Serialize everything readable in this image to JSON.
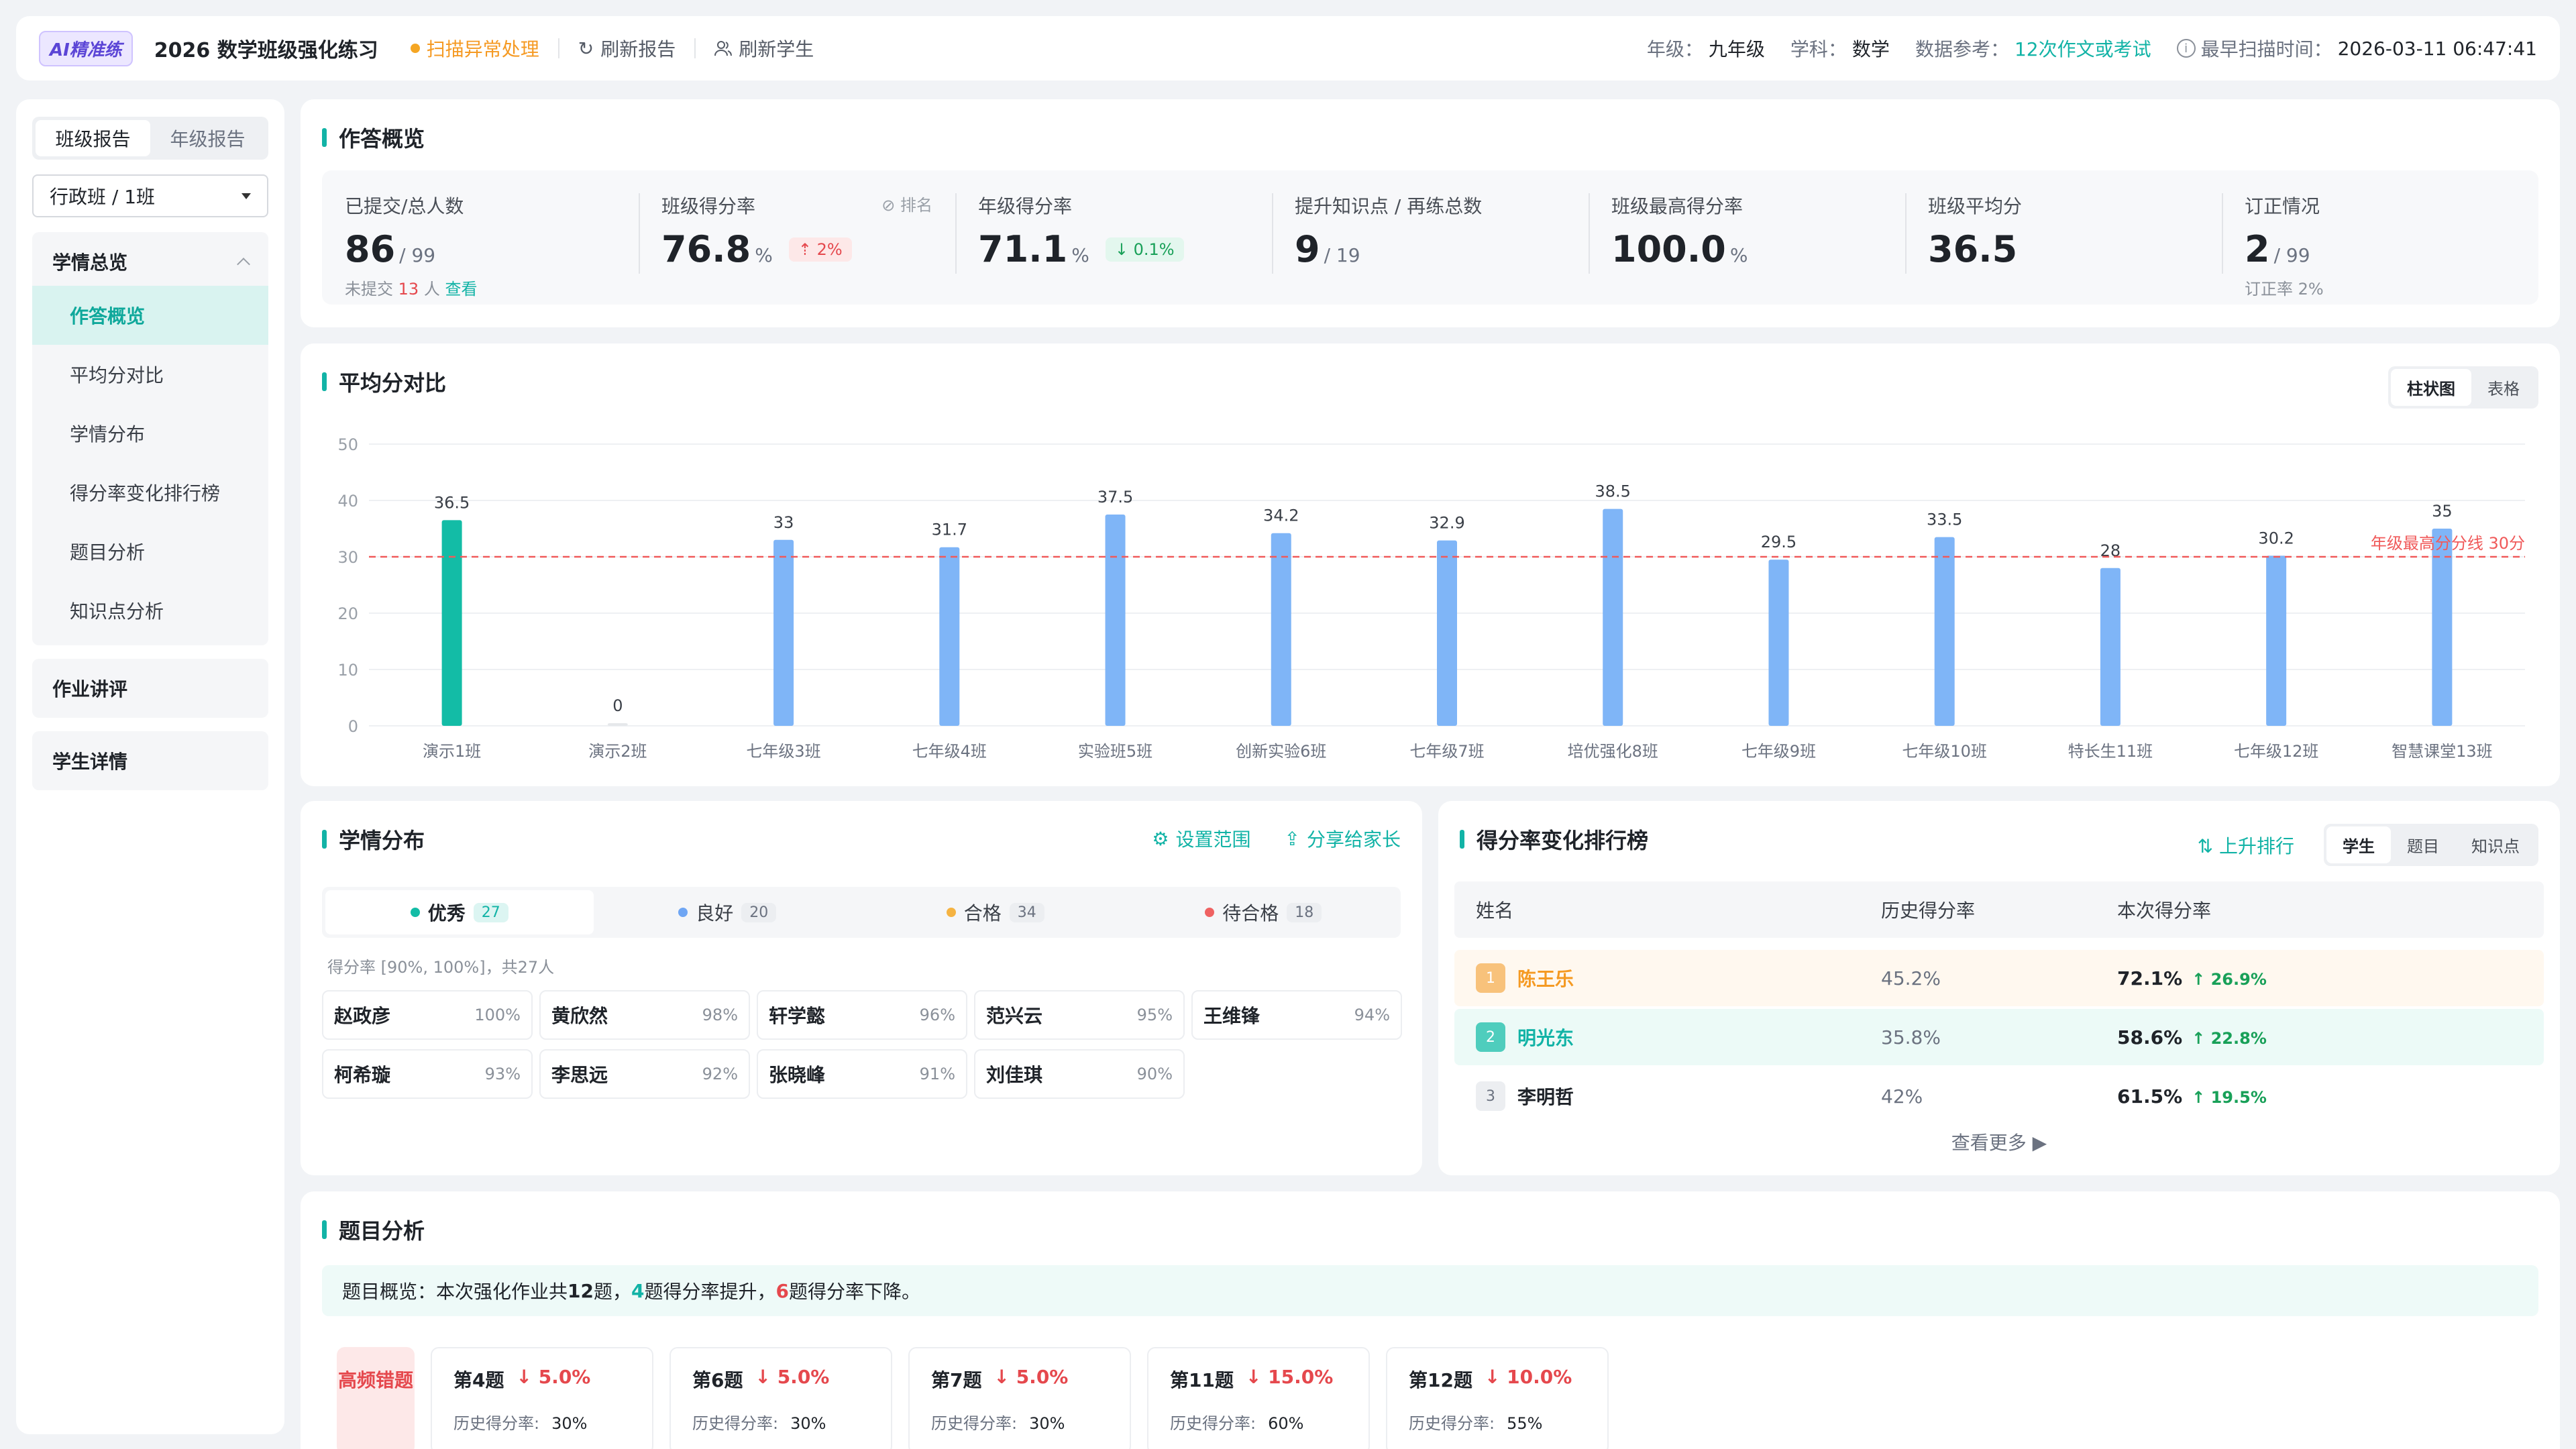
{
  "topbar": {
    "badge": "AI精准练",
    "title": "2026 数学班级强化练习",
    "warn": "扫描异常处理",
    "refresh_report": "刷新报告",
    "refresh_students": "刷新学生",
    "grade_label": "年级：",
    "grade": "九年级",
    "subject_label": "学科：",
    "subject": "数学",
    "ref_label": "数据参考：",
    "ref": "12次作文或考试",
    "scan_label": "最早扫描时间：",
    "scan_time": "2026-03-11 06:47:41"
  },
  "sidebar": {
    "tab_class": "班级报告",
    "tab_grade": "年级报告",
    "class_select": "行政班 / 1班",
    "group_title": "学情总览",
    "items": [
      "作答概览",
      "平均分对比",
      "学情分布",
      "得分率变化排行榜",
      "题目分析",
      "知识点分析"
    ],
    "homework": "作业讲评",
    "student_detail": "学生详情"
  },
  "overview": {
    "title": "作答概览",
    "rank_hint": "排名",
    "stats": [
      {
        "label": "已提交/总人数",
        "value": "86",
        "unit": "/ 99",
        "sub_prefix": "未提交",
        "sub_red": "13",
        "sub_mid": "人",
        "sub_link": "查看"
      },
      {
        "label": "班级得分率",
        "value": "76.8",
        "unit": "%",
        "chip": "2%"
      },
      {
        "label": "年级得分率",
        "value": "71.1",
        "unit": "%",
        "chip": "0.1%"
      },
      {
        "label": "提升知识点 / 再练总数",
        "value": "9",
        "unit": "/ 19"
      },
      {
        "label": "班级最高得分率",
        "value": "100.0",
        "unit": "%"
      },
      {
        "label": "班级平均分",
        "value": "36.5",
        "unit": ""
      },
      {
        "label": "订正情况",
        "value": "2",
        "unit": "/ 99",
        "sub": "订正率 2%"
      }
    ]
  },
  "avg": {
    "title": "平均分对比",
    "toggle_bar": "柱状图",
    "toggle_table": "表格"
  },
  "chart_data": {
    "type": "bar",
    "categories": [
      "演示1班",
      "演示2班",
      "七年级3班",
      "七年级4班",
      "实验班5班",
      "创新实验6班",
      "七年级7班",
      "培优强化8班",
      "七年级9班",
      "七年级10班",
      "特长生11班",
      "七年级12班",
      "智慧课堂13班"
    ],
    "values": [
      36.5,
      0,
      33,
      31.7,
      37.5,
      34.2,
      32.9,
      38.5,
      29.5,
      33.5,
      28,
      30.2,
      35
    ],
    "highlight_index": 0,
    "ylim": [
      0,
      50
    ],
    "yticks": [
      0,
      10,
      20,
      30,
      40,
      50
    ],
    "reference_line": {
      "value": 30,
      "label": "年级最高分分线 30分"
    },
    "colors": {
      "highlight": "#13bca6",
      "bar": "#7fb5f7",
      "ref": "#f05a5a"
    }
  },
  "dist": {
    "title": "学情分布",
    "set_range": "设置范围",
    "share": "分享给家长",
    "tabs": [
      {
        "label": "优秀",
        "count": "27",
        "color": "#13bca6"
      },
      {
        "label": "良好",
        "count": "20",
        "color": "#6fa6f4"
      },
      {
        "label": "合格",
        "count": "34",
        "color": "#f5b342"
      },
      {
        "label": "待合格",
        "count": "18",
        "color": "#ef6262"
      }
    ],
    "range_text": "得分率 [90%, 100%]，共27人",
    "students": [
      {
        "name": "赵政彦",
        "pct": "100%"
      },
      {
        "name": "黄欣然",
        "pct": "98%"
      },
      {
        "name": "轩学懿",
        "pct": "96%"
      },
      {
        "name": "范兴云",
        "pct": "95%"
      },
      {
        "name": "王维锋",
        "pct": "94%"
      },
      {
        "name": "柯希璇",
        "pct": "93%"
      },
      {
        "name": "李思远",
        "pct": "92%"
      },
      {
        "name": "张晓峰",
        "pct": "91%"
      },
      {
        "name": "刘佳琪",
        "pct": "90%"
      }
    ]
  },
  "rank": {
    "title": "得分率变化排行榜",
    "sort": "上升排行",
    "tabs": [
      "学生",
      "题目",
      "知识点"
    ],
    "col_name": "姓名",
    "col_hist": "历史得分率",
    "col_now": "本次得分率",
    "rows": [
      {
        "no": "1",
        "name": "陈王乐",
        "hist": "45.2%",
        "now": "72.1%",
        "inc": "26.9%"
      },
      {
        "no": "2",
        "name": "明光东",
        "hist": "35.8%",
        "now": "58.6%",
        "inc": "22.8%"
      },
      {
        "no": "3",
        "name": "李明哲",
        "hist": "42%",
        "now": "61.5%",
        "inc": "19.5%"
      }
    ],
    "more": "查看更多 ▶"
  },
  "qa": {
    "title": "题目分析",
    "sum_a": "题目概览：本次强化作业共",
    "sum_total": "12",
    "sum_b": "题，",
    "sum_up": "4",
    "sum_c": "题得分率提升，",
    "sum_down": "6",
    "sum_d": "题得分率下降。",
    "hf_label": "高频错题",
    "hist_label": "历史得分率:",
    "cards": [
      {
        "q": "第4题",
        "delta": "↓ 5.0%",
        "hist": "30%"
      },
      {
        "q": "第6题",
        "delta": "↓ 5.0%",
        "hist": "30%"
      },
      {
        "q": "第7题",
        "delta": "↓ 5.0%",
        "hist": "30%"
      },
      {
        "q": "第11题",
        "delta": "↓ 15.0%",
        "hist": "60%"
      },
      {
        "q": "第12题",
        "delta": "↓ 10.0%",
        "hist": "55%"
      }
    ]
  }
}
